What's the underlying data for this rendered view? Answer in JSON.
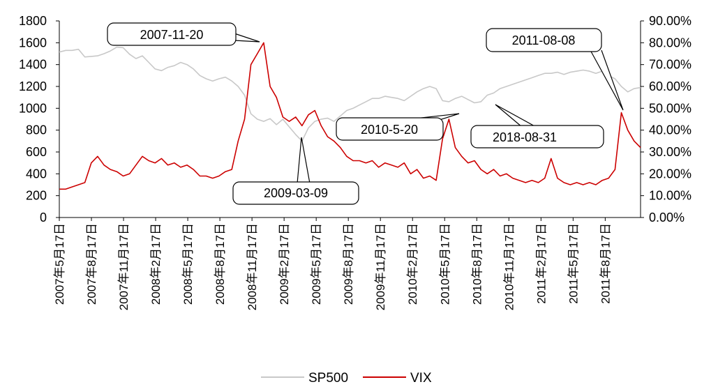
{
  "chart_data": {
    "type": "line",
    "title": "",
    "xlabel": "",
    "ylabel": "",
    "y_left": {
      "ylim": [
        0,
        1800
      ],
      "ticks": [
        "0",
        "200",
        "400",
        "600",
        "800",
        "1000",
        "1200",
        "1400",
        "1600",
        "1800"
      ]
    },
    "y_right": {
      "ylim": [
        0,
        0.9
      ],
      "ticks": [
        "0.00%",
        "10.00%",
        "20.00%",
        "30.00%",
        "40.00%",
        "50.00%",
        "60.00%",
        "70.00%",
        "80.00%",
        "90.00%"
      ]
    },
    "x_ticks": [
      "2007年5月17日",
      "2007年8月17日",
      "2007年11月17日",
      "2008年2月17日",
      "2008年5月17日",
      "2008年8月17日",
      "2008年11月17日",
      "2009年2月17日",
      "2009年5月17日",
      "2009年8月17日",
      "2009年11月17日",
      "2010年2月17日",
      "2010年5月17日",
      "2010年8月17日",
      "2010年11月17日",
      "2011年2月17日",
      "2011年5月17日",
      "2011年8月17日"
    ],
    "grid": false,
    "legend_position": "bottom",
    "series": [
      {
        "name": "SP500",
        "axis": "left",
        "color": "#c8c8c8",
        "values": [
          1515,
          1530,
          1530,
          1540,
          1470,
          1475,
          1480,
          1500,
          1525,
          1560,
          1555,
          1495,
          1455,
          1480,
          1420,
          1360,
          1345,
          1375,
          1390,
          1420,
          1400,
          1360,
          1300,
          1270,
          1250,
          1270,
          1285,
          1250,
          1200,
          1120,
          950,
          900,
          880,
          905,
          850,
          900,
          830,
          760,
          700,
          820,
          880,
          900,
          910,
          880,
          930,
          980,
          1000,
          1030,
          1060,
          1090,
          1090,
          1110,
          1100,
          1090,
          1070,
          1110,
          1150,
          1180,
          1200,
          1180,
          1070,
          1060,
          1090,
          1110,
          1080,
          1050,
          1060,
          1120,
          1140,
          1180,
          1200,
          1220,
          1240,
          1260,
          1280,
          1300,
          1320,
          1320,
          1330,
          1310,
          1330,
          1340,
          1350,
          1340,
          1320,
          1340,
          1300,
          1270,
          1200,
          1150,
          1180,
          1190
        ]
      },
      {
        "name": "VIX",
        "axis": "right",
        "color": "#cc0000",
        "values": [
          0.13,
          0.13,
          0.14,
          0.15,
          0.16,
          0.25,
          0.28,
          0.24,
          0.22,
          0.21,
          0.19,
          0.2,
          0.24,
          0.28,
          0.26,
          0.25,
          0.27,
          0.24,
          0.25,
          0.23,
          0.24,
          0.22,
          0.19,
          0.19,
          0.18,
          0.19,
          0.21,
          0.22,
          0.35,
          0.45,
          0.7,
          0.75,
          0.8,
          0.6,
          0.55,
          0.46,
          0.44,
          0.46,
          0.42,
          0.47,
          0.49,
          0.42,
          0.37,
          0.35,
          0.32,
          0.28,
          0.26,
          0.26,
          0.25,
          0.26,
          0.23,
          0.25,
          0.24,
          0.23,
          0.25,
          0.2,
          0.22,
          0.18,
          0.19,
          0.17,
          0.36,
          0.45,
          0.32,
          0.28,
          0.25,
          0.26,
          0.22,
          0.2,
          0.22,
          0.19,
          0.2,
          0.18,
          0.17,
          0.16,
          0.17,
          0.16,
          0.18,
          0.27,
          0.18,
          0.16,
          0.15,
          0.16,
          0.15,
          0.16,
          0.15,
          0.17,
          0.18,
          0.22,
          0.48,
          0.4,
          0.35,
          0.32
        ]
      }
    ],
    "annotations": [
      "2007-11-20",
      "2009-03-09",
      "2010-5-20",
      "2018-08-31",
      "2011-08-08"
    ]
  }
}
